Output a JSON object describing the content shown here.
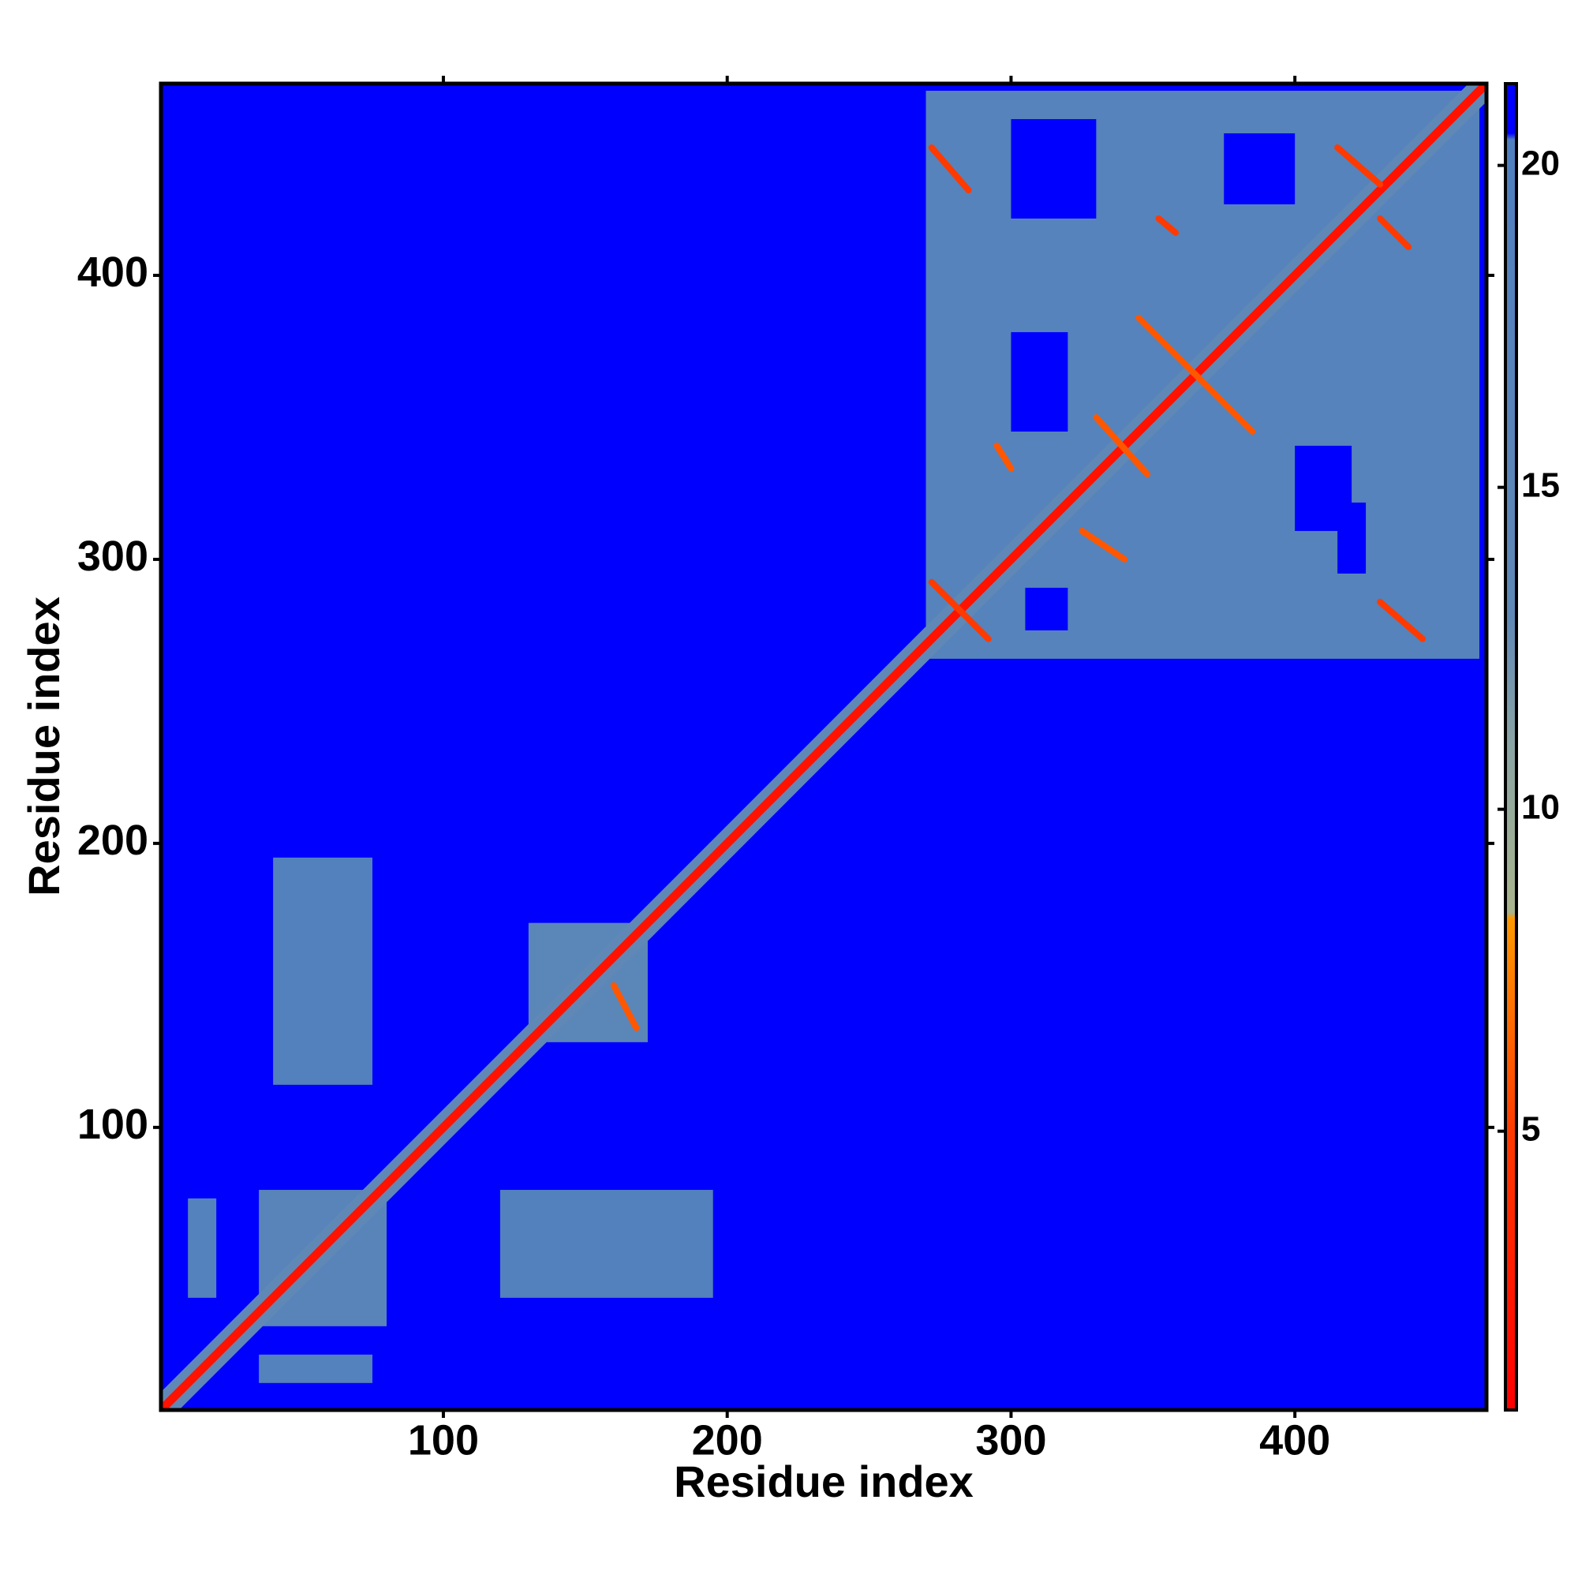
{
  "chart_data": {
    "type": "heatmap",
    "xlabel": "Residue index",
    "ylabel": "Residue index",
    "xlim": [
      0.5,
      467.5
    ],
    "ylim": [
      0.5,
      467.5
    ],
    "xticks": [
      100,
      200,
      300,
      400
    ],
    "yticks": [
      100,
      200,
      300,
      400
    ],
    "clim": [
      0.67,
      21.27
    ],
    "cticks": [
      5,
      10,
      15,
      20
    ],
    "colorscale": [
      [
        0.67,
        "#ff0000"
      ],
      [
        5,
        "#ff3a00"
      ],
      [
        8.3,
        "#ff9900"
      ],
      [
        8.4,
        "#a8b48c"
      ],
      [
        11,
        "#8aa4a4"
      ],
      [
        13,
        "#5f88b6"
      ],
      [
        20.4,
        "#4f7fbf"
      ],
      [
        20.5,
        "#0000ff"
      ],
      [
        21.27,
        "#0000ff"
      ]
    ],
    "background_value": 21,
    "regions": [
      {
        "x": [
          270,
          465
        ],
        "y": [
          265,
          465
        ],
        "value": 17
      },
      {
        "x": [
          300,
          330
        ],
        "y": [
          420,
          455
        ],
        "value": 21
      },
      {
        "x": [
          375,
          400
        ],
        "y": [
          425,
          450
        ],
        "value": 21
      },
      {
        "x": [
          300,
          320
        ],
        "y": [
          345,
          380
        ],
        "value": 21
      },
      {
        "x": [
          400,
          420
        ],
        "y": [
          310,
          340
        ],
        "value": 21
      },
      {
        "x": [
          415,
          425
        ],
        "y": [
          295,
          320
        ],
        "value": 21
      },
      {
        "x": [
          305,
          320
        ],
        "y": [
          275,
          290
        ],
        "value": 21
      },
      {
        "x": [
          35,
          80
        ],
        "y": [
          30,
          78
        ],
        "value": 16
      },
      {
        "x": [
          10,
          20
        ],
        "y": [
          40,
          75
        ],
        "value": 18
      },
      {
        "x": [
          35,
          75
        ],
        "y": [
          10,
          20
        ],
        "value": 18
      },
      {
        "x": [
          40,
          75
        ],
        "y": [
          115,
          195
        ],
        "value": 19
      },
      {
        "x": [
          120,
          195
        ],
        "y": [
          40,
          78
        ],
        "value": 19
      },
      {
        "x": [
          130,
          172
        ],
        "y": [
          130,
          172
        ],
        "value": 15
      }
    ],
    "contacts": [
      {
        "x": [
          272,
          285
        ],
        "y": [
          445,
          430
        ],
        "value": 5
      },
      {
        "x": [
          272,
          292
        ],
        "y": [
          292,
          272
        ],
        "value": 5
      },
      {
        "x": [
          345,
          385
        ],
        "y": [
          385,
          345
        ],
        "value": 6
      },
      {
        "x": [
          330,
          348
        ],
        "y": [
          350,
          330
        ],
        "value": 6
      },
      {
        "x": [
          325,
          340
        ],
        "y": [
          310,
          300
        ],
        "value": 6
      },
      {
        "x": [
          295,
          300
        ],
        "y": [
          340,
          332
        ],
        "value": 6
      },
      {
        "x": [
          352,
          358
        ],
        "y": [
          420,
          415
        ],
        "value": 5
      },
      {
        "x": [
          415,
          430
        ],
        "y": [
          445,
          432
        ],
        "value": 5
      },
      {
        "x": [
          430,
          445
        ],
        "y": [
          285,
          272
        ],
        "value": 5
      },
      {
        "x": [
          430,
          440
        ],
        "y": [
          420,
          410
        ],
        "value": 5
      },
      {
        "x": [
          160,
          168
        ],
        "y": [
          150,
          135
        ],
        "value": 6
      }
    ],
    "diagonal": {
      "range": [
        1,
        467
      ],
      "width": 3,
      "value": 2
    },
    "diagonal_halo": {
      "range": [
        1,
        467
      ],
      "width": 9,
      "value": 13
    }
  }
}
